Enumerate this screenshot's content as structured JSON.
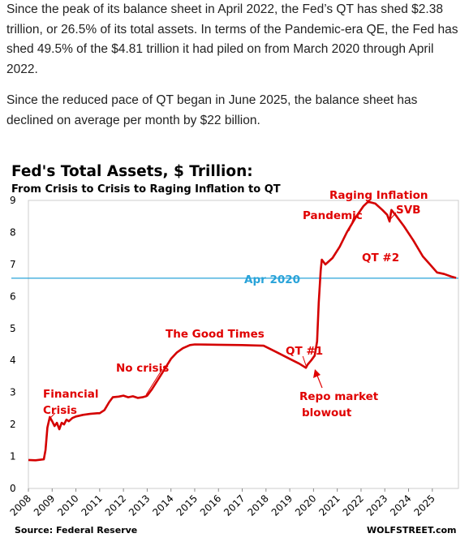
{
  "article": {
    "paragraph_1": "Since the peak of its balance sheet in April 2022, the Fed’s QT has shed $2.38 trillion, or 26.5% of its total assets. In terms of the Pandemic-era QE, the Fed has shed 49.5% of the $4.81 trillion it had piled on from March 2020 through April 2022.",
    "paragraph_2": "Since the reduced pace of QT began in June 2025, the balance sheet has declined on average per month by $22 billion."
  },
  "colors": {
    "line": "#d40000",
    "annotation": "#e00000",
    "reference_line": "#29a3d9",
    "title": "#000000",
    "subtitle": "#e00000"
  },
  "chart_data": {
    "type": "line",
    "title": "Fed's Total Assets, $ Trillion:",
    "subtitle": "From Crisis to Crisis to Raging Inflation to QT",
    "xlabel": "",
    "ylabel": "",
    "xlim": [
      2008,
      2026.1
    ],
    "ylim": [
      0,
      9
    ],
    "y_ticks": [
      0,
      1,
      2,
      3,
      4,
      5,
      6,
      7,
      8,
      9
    ],
    "x_ticks": [
      "2008",
      "2009",
      "2010",
      "2011",
      "2012",
      "2013",
      "2014",
      "2015",
      "2016",
      "2017",
      "2018",
      "2019",
      "2020",
      "2021",
      "2022",
      "2023",
      "2024",
      "2025"
    ],
    "grid": false,
    "series": [
      {
        "values": [
          [
            2008.0,
            0.89
          ],
          [
            2008.3,
            0.88
          ],
          [
            2008.65,
            0.91
          ],
          [
            2008.72,
            1.2
          ],
          [
            2008.8,
            1.9
          ],
          [
            2008.9,
            2.23
          ],
          [
            2009.0,
            2.1
          ],
          [
            2009.1,
            1.95
          ],
          [
            2009.2,
            2.05
          ],
          [
            2009.3,
            1.85
          ],
          [
            2009.4,
            2.05
          ],
          [
            2009.5,
            2.0
          ],
          [
            2009.6,
            2.15
          ],
          [
            2009.7,
            2.1
          ],
          [
            2009.85,
            2.2
          ],
          [
            2010.0,
            2.25
          ],
          [
            2010.3,
            2.3
          ],
          [
            2010.6,
            2.33
          ],
          [
            2010.9,
            2.35
          ],
          [
            2011.0,
            2.35
          ],
          [
            2011.2,
            2.45
          ],
          [
            2011.4,
            2.7
          ],
          [
            2011.55,
            2.85
          ],
          [
            2011.8,
            2.87
          ],
          [
            2012.0,
            2.9
          ],
          [
            2012.2,
            2.85
          ],
          [
            2012.4,
            2.88
          ],
          [
            2012.6,
            2.83
          ],
          [
            2012.8,
            2.85
          ],
          [
            2012.95,
            2.88
          ],
          [
            2013.0,
            2.9
          ],
          [
            2013.2,
            3.1
          ],
          [
            2013.5,
            3.45
          ],
          [
            2013.75,
            3.75
          ],
          [
            2014.0,
            4.05
          ],
          [
            2014.25,
            4.25
          ],
          [
            2014.5,
            4.38
          ],
          [
            2014.8,
            4.48
          ],
          [
            2015.0,
            4.5
          ],
          [
            2016.0,
            4.49
          ],
          [
            2017.0,
            4.48
          ],
          [
            2017.9,
            4.46
          ],
          [
            2018.2,
            4.35
          ],
          [
            2018.6,
            4.2
          ],
          [
            2019.0,
            4.05
          ],
          [
            2019.4,
            3.9
          ],
          [
            2019.68,
            3.77
          ],
          [
            2019.75,
            3.87
          ],
          [
            2019.9,
            4.0
          ],
          [
            2020.05,
            4.15
          ],
          [
            2020.15,
            4.6
          ],
          [
            2020.22,
            5.8
          ],
          [
            2020.3,
            6.8
          ],
          [
            2020.35,
            7.15
          ],
          [
            2020.5,
            7.0
          ],
          [
            2020.8,
            7.2
          ],
          [
            2021.1,
            7.55
          ],
          [
            2021.4,
            8.0
          ],
          [
            2021.8,
            8.5
          ],
          [
            2022.1,
            8.82
          ],
          [
            2022.3,
            8.96
          ],
          [
            2022.6,
            8.9
          ],
          [
            2022.9,
            8.7
          ],
          [
            2023.1,
            8.55
          ],
          [
            2023.2,
            8.34
          ],
          [
            2023.28,
            8.7
          ],
          [
            2023.45,
            8.55
          ],
          [
            2023.8,
            8.2
          ],
          [
            2024.2,
            7.75
          ],
          [
            2024.6,
            7.25
          ],
          [
            2024.9,
            7.0
          ],
          [
            2025.2,
            6.75
          ],
          [
            2025.5,
            6.7
          ],
          [
            2025.8,
            6.62
          ],
          [
            2026.0,
            6.58
          ]
        ]
      }
    ],
    "reference_lines": [
      {
        "y": 6.57,
        "label": "Apr 2020"
      }
    ],
    "annotations": [
      {
        "text": "Financial"
      },
      {
        "text": "Crisis"
      },
      {
        "text": "No crisis"
      },
      {
        "text": "The Good Times"
      },
      {
        "text": "QT #1"
      },
      {
        "text": "Repo market"
      },
      {
        "text": "blowout"
      },
      {
        "text": "Pandemic"
      },
      {
        "text": "Raging  Inflation"
      },
      {
        "text": "SVB"
      },
      {
        "text": "QT #2"
      }
    ],
    "source": "Source: Federal Reserve",
    "watermark": "WOLFSTREET.com"
  }
}
